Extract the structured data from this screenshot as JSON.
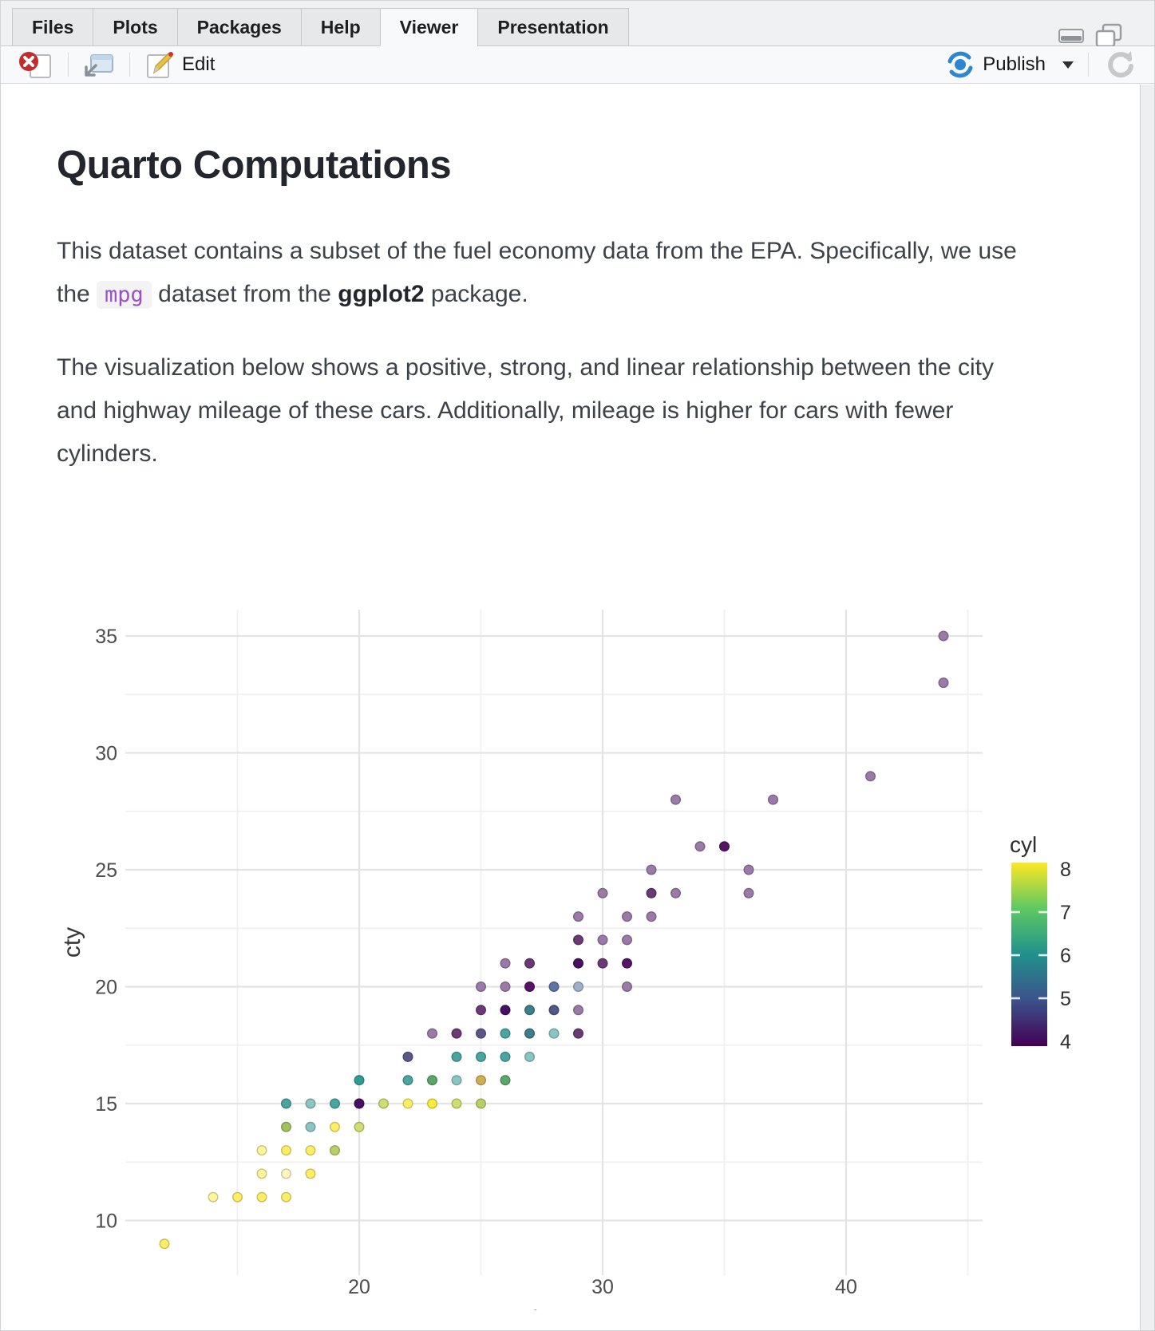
{
  "window": {
    "tabs": [
      {
        "label": "Files",
        "active": false
      },
      {
        "label": "Plots",
        "active": false
      },
      {
        "label": "Packages",
        "active": false
      },
      {
        "label": "Help",
        "active": false
      },
      {
        "label": "Viewer",
        "active": true
      },
      {
        "label": "Presentation",
        "active": false
      }
    ],
    "toolbar": {
      "edit_label": "Edit",
      "publish_label": "Publish"
    },
    "colors": {
      "publish_blue": "#2e86d1",
      "close_red": "#c42b2b",
      "code_text": "#9a50c8",
      "code_bg": "#f3f3f4"
    }
  },
  "document": {
    "title": "Quarto Computations",
    "p1_a": "This dataset contains a subset of the fuel economy data from the EPA. Specifically, we use the ",
    "p1_code": "mpg",
    "p1_b": " dataset from the ",
    "p1_bold": "ggplot2",
    "p1_c": " package.",
    "p2": "The visualization below shows a positive, strong, and linear relationship between the city and highway mileage of these cars. Additionally, mileage is higher for cars with fewer cylinders."
  },
  "chart_data": {
    "type": "scatter",
    "xlabel": "hwy",
    "ylabel": "cty",
    "xlim": [
      10.4,
      45.6
    ],
    "ylim": [
      7.7,
      36.3
    ],
    "x_ticks": [
      20,
      30,
      40
    ],
    "x_minor": [
      15,
      25,
      35,
      45
    ],
    "y_ticks": [
      10,
      15,
      20,
      25,
      30,
      35
    ],
    "y_minor": [
      12.5,
      17.5,
      22.5,
      27.5,
      32.5
    ],
    "grid": true,
    "legend": {
      "title": "cyl",
      "position": "right",
      "ticks": [
        8,
        7,
        6,
        5,
        4
      ],
      "gradient_top_to_bottom": [
        "#fde725",
        "#5ec962",
        "#21918c",
        "#3b528b",
        "#440154"
      ]
    },
    "points": [
      {
        "hwy": 12,
        "cty": 9,
        "cyl": 8,
        "color": "#fdee66"
      },
      {
        "hwy": 14,
        "cty": 11,
        "cyl": 8,
        "color": "#fdf49b"
      },
      {
        "hwy": 15,
        "cty": 11,
        "cyl": 8,
        "color": "#fdee66"
      },
      {
        "hwy": 16,
        "cty": 11,
        "cyl": 8,
        "color": "#fdee66"
      },
      {
        "hwy": 17,
        "cty": 11,
        "cyl": 8,
        "color": "#fdee66"
      },
      {
        "hwy": 16,
        "cty": 12,
        "cyl": 8,
        "color": "#fdf49b"
      },
      {
        "hwy": 17,
        "cty": 12,
        "cyl": 8,
        "color": "#fef8bd"
      },
      {
        "hwy": 18,
        "cty": 12,
        "cyl": 8,
        "color": "#fdee66"
      },
      {
        "hwy": 16,
        "cty": 13,
        "cyl": 8,
        "color": "#fdf49b"
      },
      {
        "hwy": 17,
        "cty": 13,
        "cyl": 8,
        "color": "#fdee66"
      },
      {
        "hwy": 18,
        "cty": 13,
        "cyl": 8,
        "color": "#fdee66"
      },
      {
        "hwy": 19,
        "cty": 13,
        "cyl": 8,
        "color": "#b8cf66"
      },
      {
        "hwy": 17,
        "cty": 14,
        "cyl": 8,
        "color": "#a3c25f"
      },
      {
        "hwy": 18,
        "cty": 14,
        "cyl": 6,
        "color": "#8ac5c2"
      },
      {
        "hwy": 19,
        "cty": 14,
        "cyl": 8,
        "color": "#fdee66"
      },
      {
        "hwy": 20,
        "cty": 14,
        "cyl": 8,
        "color": "#cfdd72"
      },
      {
        "hwy": 17,
        "cty": 15,
        "cyl": 6,
        "color": "#4aa4a0"
      },
      {
        "hwy": 18,
        "cty": 15,
        "cyl": 6,
        "color": "#8ac5c2"
      },
      {
        "hwy": 19,
        "cty": 15,
        "cyl": 6,
        "color": "#4aa4a0"
      },
      {
        "hwy": 20,
        "cty": 15,
        "cyl": 4,
        "color": "#471060"
      },
      {
        "hwy": 21,
        "cty": 15,
        "cyl": 8,
        "color": "#cfdd72"
      },
      {
        "hwy": 22,
        "cty": 15,
        "cyl": 8,
        "color": "#fdee66"
      },
      {
        "hwy": 23,
        "cty": 15,
        "cyl": 8,
        "color": "#fbe93b"
      },
      {
        "hwy": 24,
        "cty": 15,
        "cyl": 8,
        "color": "#cfdd72"
      },
      {
        "hwy": 25,
        "cty": 15,
        "cyl": 8,
        "color": "#b8cf66"
      },
      {
        "hwy": 20,
        "cty": 16,
        "cyl": 6,
        "color": "#2f9b95"
      },
      {
        "hwy": 22,
        "cty": 16,
        "cyl": 6,
        "color": "#4aa4a0"
      },
      {
        "hwy": 23,
        "cty": 16,
        "cyl": 6,
        "color": "#5aa768"
      },
      {
        "hwy": 24,
        "cty": 16,
        "cyl": 6,
        "color": "#8ac5c2"
      },
      {
        "hwy": 25,
        "cty": 16,
        "cyl": 8,
        "color": "#d2ae52"
      },
      {
        "hwy": 26,
        "cty": 16,
        "cyl": 6,
        "color": "#5aa768"
      },
      {
        "hwy": 22,
        "cty": 17,
        "cyl": 5,
        "color": "#5b5689"
      },
      {
        "hwy": 24,
        "cty": 17,
        "cyl": 6,
        "color": "#4aa4a0"
      },
      {
        "hwy": 25,
        "cty": 17,
        "cyl": 6,
        "color": "#4aa4a0"
      },
      {
        "hwy": 26,
        "cty": 17,
        "cyl": 6,
        "color": "#4aa4a0"
      },
      {
        "hwy": 27,
        "cty": 17,
        "cyl": 6,
        "color": "#8ac5c2"
      },
      {
        "hwy": 23,
        "cty": 18,
        "cyl": 4,
        "color": "#9b79a8"
      },
      {
        "hwy": 24,
        "cty": 18,
        "cyl": 4,
        "color": "#6b3a76"
      },
      {
        "hwy": 25,
        "cty": 18,
        "cyl": 4,
        "color": "#5b5689"
      },
      {
        "hwy": 26,
        "cty": 18,
        "cyl": 6,
        "color": "#4aa4a0"
      },
      {
        "hwy": 27,
        "cty": 18,
        "cyl": 6,
        "color": "#3f7d8c"
      },
      {
        "hwy": 28,
        "cty": 18,
        "cyl": 6,
        "color": "#8ac5c2"
      },
      {
        "hwy": 29,
        "cty": 18,
        "cyl": 4,
        "color": "#6b3a76"
      },
      {
        "hwy": 25,
        "cty": 19,
        "cyl": 4,
        "color": "#6b3a76"
      },
      {
        "hwy": 26,
        "cty": 19,
        "cyl": 4,
        "color": "#471060"
      },
      {
        "hwy": 27,
        "cty": 19,
        "cyl": 6,
        "color": "#3f7d8c"
      },
      {
        "hwy": 28,
        "cty": 19,
        "cyl": 5,
        "color": "#4f5886"
      },
      {
        "hwy": 29,
        "cty": 19,
        "cyl": 4,
        "color": "#9b79a8"
      },
      {
        "hwy": 25,
        "cty": 20,
        "cyl": 4,
        "color": "#9b79a8"
      },
      {
        "hwy": 26,
        "cty": 20,
        "cyl": 4,
        "color": "#9b79a8"
      },
      {
        "hwy": 27,
        "cty": 20,
        "cyl": 4,
        "color": "#551466"
      },
      {
        "hwy": 28,
        "cty": 20,
        "cyl": 5,
        "color": "#5f74a2"
      },
      {
        "hwy": 29,
        "cty": 20,
        "cyl": 5,
        "color": "#9fb0cc"
      },
      {
        "hwy": 31,
        "cty": 20,
        "cyl": 4,
        "color": "#9b79a8"
      },
      {
        "hwy": 26,
        "cty": 21,
        "cyl": 4,
        "color": "#9b79a8"
      },
      {
        "hwy": 27,
        "cty": 21,
        "cyl": 4,
        "color": "#6b3a76"
      },
      {
        "hwy": 29,
        "cty": 21,
        "cyl": 4,
        "color": "#471060"
      },
      {
        "hwy": 30,
        "cty": 21,
        "cyl": 4,
        "color": "#6b3a76"
      },
      {
        "hwy": 31,
        "cty": 21,
        "cyl": 4,
        "color": "#551466"
      },
      {
        "hwy": 29,
        "cty": 22,
        "cyl": 4,
        "color": "#6b3a76"
      },
      {
        "hwy": 30,
        "cty": 22,
        "cyl": 4,
        "color": "#9b79a8"
      },
      {
        "hwy": 31,
        "cty": 22,
        "cyl": 4,
        "color": "#9b79a8"
      },
      {
        "hwy": 29,
        "cty": 23,
        "cyl": 4,
        "color": "#9b79a8"
      },
      {
        "hwy": 31,
        "cty": 23,
        "cyl": 4,
        "color": "#9b79a8"
      },
      {
        "hwy": 32,
        "cty": 23,
        "cyl": 4,
        "color": "#9b79a8"
      },
      {
        "hwy": 30,
        "cty": 24,
        "cyl": 4,
        "color": "#9b79a8"
      },
      {
        "hwy": 32,
        "cty": 24,
        "cyl": 4,
        "color": "#6b3a76"
      },
      {
        "hwy": 33,
        "cty": 24,
        "cyl": 4,
        "color": "#9b79a8"
      },
      {
        "hwy": 36,
        "cty": 24,
        "cyl": 4,
        "color": "#9b79a8"
      },
      {
        "hwy": 32,
        "cty": 25,
        "cyl": 4,
        "color": "#9b79a8"
      },
      {
        "hwy": 36,
        "cty": 25,
        "cyl": 4,
        "color": "#9b79a8"
      },
      {
        "hwy": 34,
        "cty": 26,
        "cyl": 4,
        "color": "#9b79a8"
      },
      {
        "hwy": 35,
        "cty": 26,
        "cyl": 4,
        "color": "#551466"
      },
      {
        "hwy": 33,
        "cty": 28,
        "cyl": 4,
        "color": "#9b79a8"
      },
      {
        "hwy": 37,
        "cty": 28,
        "cyl": 4,
        "color": "#9b79a8"
      },
      {
        "hwy": 41,
        "cty": 29,
        "cyl": 4,
        "color": "#9b79a8"
      },
      {
        "hwy": 44,
        "cty": 33,
        "cyl": 4,
        "color": "#9b79a8"
      },
      {
        "hwy": 44,
        "cty": 35,
        "cyl": 4,
        "color": "#9b79a8"
      }
    ]
  }
}
